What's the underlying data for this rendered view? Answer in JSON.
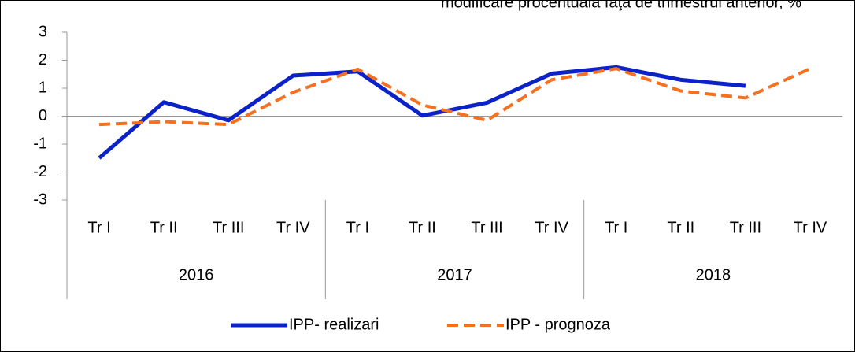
{
  "chart_data": {
    "type": "line",
    "subtitle": "modificare procentuală faţă de trimestrul anterior, %",
    "categories": [
      "Tr I",
      "Tr II",
      "Tr III",
      "Tr IV",
      "Tr I",
      "Tr II",
      "Tr III",
      "Tr IV",
      "Tr I",
      "Tr II",
      "Tr III",
      "Tr IV"
    ],
    "group_labels": [
      "2016",
      "2017",
      "2018"
    ],
    "series": [
      {
        "name": "IPP- realizari",
        "color": "#0a22c8",
        "dash": false,
        "values": [
          -1.5,
          0.5,
          -0.15,
          1.45,
          1.6,
          0.02,
          0.48,
          1.52,
          1.75,
          1.3,
          1.08,
          null
        ]
      },
      {
        "name": "IPP - prognoza",
        "color": "#f5701f",
        "dash": true,
        "values": [
          -0.3,
          -0.2,
          -0.3,
          0.85,
          1.68,
          0.4,
          -0.15,
          1.3,
          1.7,
          0.9,
          0.65,
          1.7
        ]
      }
    ],
    "ylim": [
      -3,
      3
    ],
    "yticks": [
      -3,
      -2,
      -1,
      0,
      1,
      2,
      3
    ],
    "legend": "bottom"
  }
}
